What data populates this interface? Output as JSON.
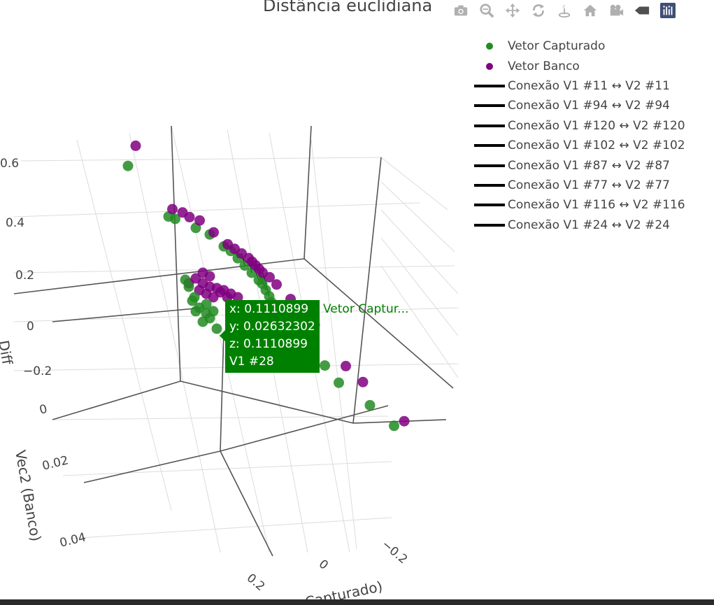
{
  "header": {
    "title": "Distância euclidiana"
  },
  "modebar": {
    "buttons": [
      {
        "name": "camera-icon"
      },
      {
        "name": "zoom-icon"
      },
      {
        "name": "pan-icon"
      },
      {
        "name": "orbit-rotation-icon"
      },
      {
        "name": "turntable-rotation-icon"
      },
      {
        "name": "home-icon"
      },
      {
        "name": "camera-reset-icon"
      },
      {
        "name": "toggle-spike-icon"
      },
      {
        "name": "plotly-logo-icon"
      }
    ]
  },
  "legend": {
    "items": [
      {
        "label": "Vetor Capturado",
        "symbol": "dot",
        "color": "#228b22"
      },
      {
        "label": "Vetor Banco",
        "symbol": "dot",
        "color": "#800080"
      },
      {
        "label": "Conexão V1 #11 ↔ V2 #11",
        "symbol": "line",
        "color": "#000000"
      },
      {
        "label": "Conexão V1 #94 ↔ V2 #94",
        "symbol": "line",
        "color": "#000000"
      },
      {
        "label": "Conexão V1 #120 ↔ V2 #120",
        "symbol": "line",
        "color": "#000000"
      },
      {
        "label": "Conexão V1 #102 ↔ V2 #102",
        "symbol": "line",
        "color": "#000000"
      },
      {
        "label": "Conexão V1 #87 ↔ V2 #87",
        "symbol": "line",
        "color": "#000000"
      },
      {
        "label": "Conexão V1 #77 ↔ V2 #77",
        "symbol": "line",
        "color": "#000000"
      },
      {
        "label": "Conexão V1 #116 ↔ V2 #116",
        "symbol": "line",
        "color": "#000000"
      },
      {
        "label": "Conexão V1 #24 ↔ V2 #24",
        "symbol": "line",
        "color": "#000000"
      }
    ]
  },
  "tooltip": {
    "x_line": "x: 0.1110899",
    "y_line": "y: 0.02632302",
    "z_line": "z: 0.1110899",
    "id_line": "V1 #28",
    "trace_name": "Vetor Captur..."
  },
  "chart_data": {
    "type": "scatter",
    "title": "Distância euclidiana",
    "z_tick_labels": [
      "0.6",
      "0.4",
      "0.2",
      "0",
      "−0.2"
    ],
    "y_tick_labels": [
      "0",
      "0.02",
      "0.04"
    ],
    "x_tick_labels": [
      "0.2",
      "0",
      "−0.2"
    ],
    "z_axis_title_visible": "Diff",
    "y_axis_title": "Vec2 (Banco)",
    "x_axis_title_visible": "Capturado)",
    "grid": true,
    "legend_position": "top-right",
    "series": [
      {
        "name": "Vetor Capturado",
        "color": "#228b22",
        "points": [
          {
            "x": -0.07,
            "y": 0.032,
            "z": 0.55
          },
          {
            "x": -0.03,
            "y": 0.028,
            "z": 0.37
          },
          {
            "x": -0.025,
            "y": 0.027,
            "z": 0.36
          },
          {
            "x": 0.0,
            "y": 0.026,
            "z": 0.34
          },
          {
            "x": 0.02,
            "y": 0.026,
            "z": 0.33
          },
          {
            "x": 0.04,
            "y": 0.026,
            "z": 0.3
          },
          {
            "x": 0.05,
            "y": 0.026,
            "z": 0.29
          },
          {
            "x": 0.06,
            "y": 0.026,
            "z": 0.27
          },
          {
            "x": 0.07,
            "y": 0.026,
            "z": 0.25
          },
          {
            "x": 0.08,
            "y": 0.026,
            "z": 0.23
          },
          {
            "x": 0.09,
            "y": 0.026,
            "z": 0.21
          },
          {
            "x": 0.095,
            "y": 0.026,
            "z": 0.2
          },
          {
            "x": 0.1,
            "y": 0.026,
            "z": 0.18
          },
          {
            "x": 0.105,
            "y": 0.026,
            "z": 0.16
          },
          {
            "x": 0.108,
            "y": 0.026,
            "z": 0.14
          },
          {
            "x": 0.1110899,
            "y": 0.02632302,
            "z": 0.1110899
          },
          {
            "x": 0.12,
            "y": 0.026,
            "z": 0.09
          },
          {
            "x": 0.13,
            "y": 0.026,
            "z": 0.07
          },
          {
            "x": 0.15,
            "y": 0.026,
            "z": 0.03
          },
          {
            "x": 0.18,
            "y": 0.025,
            "z": -0.05
          },
          {
            "x": 0.2,
            "y": 0.025,
            "z": -0.1
          },
          {
            "x": 0.24,
            "y": 0.024,
            "z": -0.16
          },
          {
            "x": 0.27,
            "y": 0.023,
            "z": -0.22
          }
        ]
      },
      {
        "name": "Vetor Banco",
        "color": "#800080",
        "points": [
          {
            "x": -0.05,
            "y": 0.034,
            "z": 0.65
          },
          {
            "x": -0.02,
            "y": 0.029,
            "z": 0.41
          },
          {
            "x": -0.01,
            "y": 0.028,
            "z": 0.4
          },
          {
            "x": 0.0,
            "y": 0.028,
            "z": 0.39
          },
          {
            "x": 0.01,
            "y": 0.027,
            "z": 0.38
          },
          {
            "x": 0.03,
            "y": 0.027,
            "z": 0.35
          },
          {
            "x": 0.05,
            "y": 0.027,
            "z": 0.32
          },
          {
            "x": 0.06,
            "y": 0.027,
            "z": 0.31
          },
          {
            "x": 0.07,
            "y": 0.027,
            "z": 0.3
          },
          {
            "x": 0.08,
            "y": 0.027,
            "z": 0.29
          },
          {
            "x": 0.085,
            "y": 0.027,
            "z": 0.28
          },
          {
            "x": 0.09,
            "y": 0.027,
            "z": 0.27
          },
          {
            "x": 0.095,
            "y": 0.027,
            "z": 0.26
          },
          {
            "x": 0.1,
            "y": 0.027,
            "z": 0.25
          },
          {
            "x": 0.11,
            "y": 0.027,
            "z": 0.24
          },
          {
            "x": 0.12,
            "y": 0.027,
            "z": 0.22
          },
          {
            "x": 0.14,
            "y": 0.027,
            "z": 0.18
          },
          {
            "x": 0.17,
            "y": 0.026,
            "z": 0.1
          },
          {
            "x": 0.21,
            "y": 0.025,
            "z": -0.03
          },
          {
            "x": 0.23,
            "y": 0.024,
            "z": -0.08
          },
          {
            "x": 0.28,
            "y": 0.022,
            "z": -0.2
          }
        ]
      }
    ]
  }
}
